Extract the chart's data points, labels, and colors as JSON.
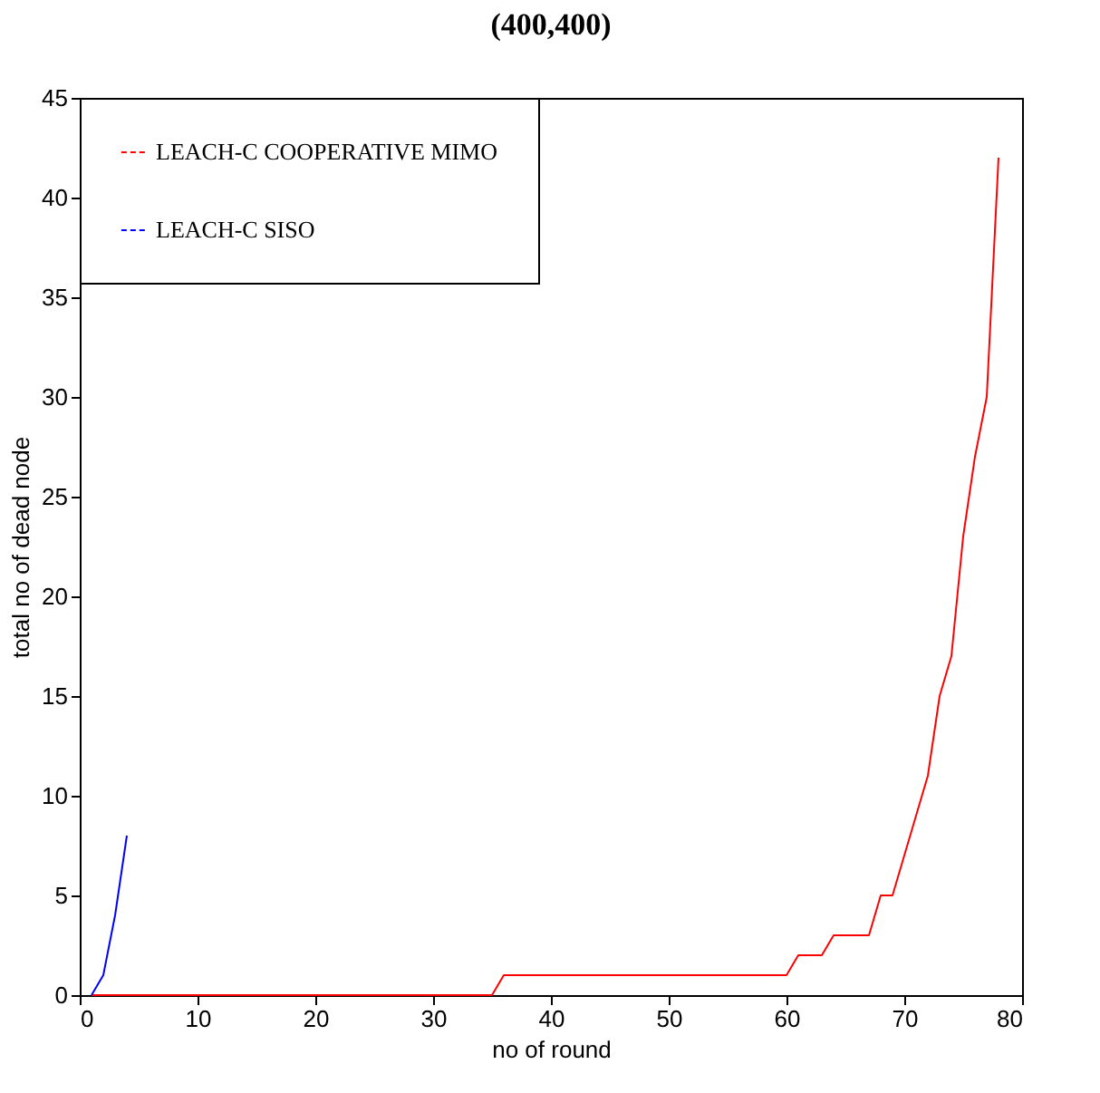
{
  "chart_data": {
    "type": "line",
    "title": "(400,400)",
    "xlabel": "no of round",
    "ylabel": "total no of dead node",
    "xlim": [
      0,
      80
    ],
    "xticks": [
      0,
      10,
      20,
      30,
      40,
      50,
      60,
      70,
      80
    ],
    "ylim": [
      0,
      45
    ],
    "yticks": [
      0,
      5,
      10,
      15,
      20,
      25,
      30,
      35,
      40,
      45
    ],
    "grid": false,
    "legend": "top left",
    "line_style": "solid",
    "marker": "none",
    "series": [
      {
        "name": "LEACH-C COOPERATIVE MIMO",
        "color": "#ff0000",
        "x": [
          1,
          35,
          36,
          60,
          61,
          63,
          64,
          67,
          68,
          69,
          70,
          71,
          72,
          73,
          74,
          75,
          76,
          77,
          78
        ],
        "values": [
          0,
          0,
          1,
          1,
          2,
          2,
          3,
          3,
          5,
          5,
          7,
          9,
          11,
          15,
          17,
          23,
          27,
          30,
          42
        ]
      },
      {
        "name": "LEACH-C SISO",
        "color": "#0000ff",
        "x": [
          1,
          2,
          3,
          4
        ],
        "values": [
          0,
          1,
          4,
          8
        ]
      }
    ]
  }
}
